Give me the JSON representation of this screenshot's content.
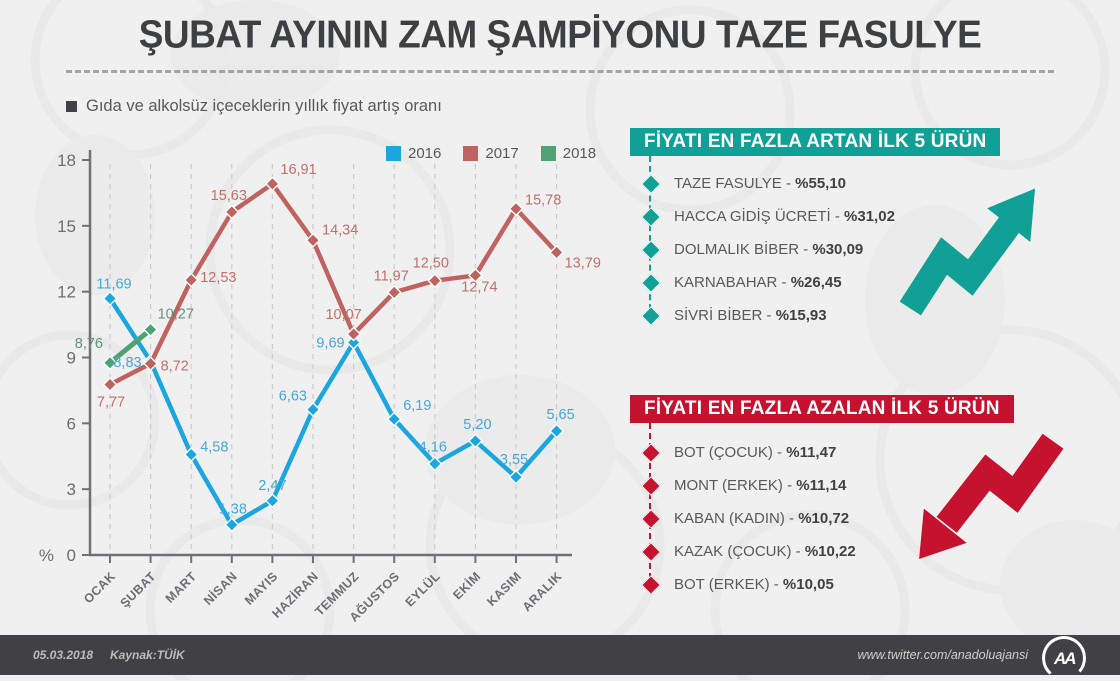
{
  "page": {
    "title": "ŞUBAT AYININ ZAM ŞAMPİYONU TAZE FASULYE",
    "subtitle": "Gıda ve alkolsüz içeceklerin yıllık fiyat artış oranı",
    "background_color": "#f0f0f0"
  },
  "chart_data": {
    "type": "line",
    "title": "Gıda ve alkolsüz içeceklerin yıllık fiyat artış oranı",
    "xlabel": "",
    "ylabel": "%",
    "ylim": [
      0,
      18
    ],
    "yticks": [
      0,
      3,
      6,
      9,
      12,
      15,
      18
    ],
    "grid": "vertical-dashed",
    "legend_position": "top",
    "categories": [
      "OCAK",
      "ŞUBAT",
      "MART",
      "NİSAN",
      "MAYIS",
      "HAZİRAN",
      "TEMMUZ",
      "AĞUSTOS",
      "EYLÜL",
      "EKİM",
      "KASIM",
      "ARALIK"
    ],
    "series": [
      {
        "name": "2016",
        "color": "#1ca6e0",
        "label_color": "#45a8d9",
        "values": [
          11.69,
          8.83,
          4.58,
          1.38,
          2.47,
          6.63,
          9.69,
          6.19,
          4.16,
          5.2,
          3.55,
          5.65
        ],
        "label_pos": [
          [
            4,
            -10,
            "m"
          ],
          [
            -9,
            6,
            "e"
          ],
          [
            9,
            -3,
            "s"
          ],
          [
            1,
            -11,
            "m"
          ],
          [
            0,
            -11,
            "m"
          ],
          [
            -6,
            -9,
            "e"
          ],
          [
            -9,
            5,
            "e"
          ],
          [
            9,
            -9,
            "s"
          ],
          [
            -2,
            -12,
            "m"
          ],
          [
            2,
            -12,
            "m"
          ],
          [
            -2,
            -13,
            "m"
          ],
          [
            4,
            -12,
            "m"
          ]
        ]
      },
      {
        "name": "2017",
        "color": "#bf6360",
        "label_color": "#c1706c",
        "values": [
          7.77,
          8.72,
          12.53,
          15.63,
          16.91,
          14.34,
          10.07,
          11.97,
          12.5,
          12.74,
          15.78,
          13.79
        ],
        "label_pos": [
          [
            1,
            22,
            "m"
          ],
          [
            10,
            7,
            "s"
          ],
          [
            9,
            2,
            "s"
          ],
          [
            -3,
            -12,
            "m"
          ],
          [
            8,
            -10,
            "s"
          ],
          [
            9,
            -6,
            "s"
          ],
          [
            -10,
            -15,
            "m"
          ],
          [
            -3,
            -12,
            "m"
          ],
          [
            -4,
            -13,
            "m"
          ],
          [
            4,
            16,
            "m"
          ],
          [
            9,
            -4,
            "s"
          ],
          [
            8,
            15,
            "s"
          ]
        ]
      },
      {
        "name": "2018",
        "color": "#4fa273",
        "label_color": "#649478",
        "values": [
          8.76,
          10.27,
          null,
          null,
          null,
          null,
          null,
          null,
          null,
          null,
          null,
          null
        ],
        "label_pos": [
          [
            -7,
            -15,
            "e"
          ],
          [
            7,
            -11,
            "s"
          ]
        ]
      }
    ]
  },
  "panels": {
    "increase": {
      "title": "FİYATI EN FAZLA ARTAN İLK 5 ÜRÜN",
      "accent_color": "#10a096",
      "items": [
        {
          "label": "TAZE FASULYE - ",
          "value": "%55,10"
        },
        {
          "label": "HACCA GİDİŞ ÜCRETİ - ",
          "value": "%31,02"
        },
        {
          "label": "DOLMALIK BİBER - ",
          "value": "%30,09"
        },
        {
          "label": "KARNABAHAR - ",
          "value": "%26,45"
        },
        {
          "label": "SİVRİ BİBER - ",
          "value": "%15,93"
        }
      ]
    },
    "decrease": {
      "title": "FİYATI EN FAZLA AZALAN İLK 5 ÜRÜN",
      "accent_color": "#c4122f",
      "items": [
        {
          "label": "BOT (ÇOCUK) - ",
          "value": "%11,47"
        },
        {
          "label": "MONT (ERKEK) - ",
          "value": "%11,14"
        },
        {
          "label": "KABAN (KADIN) - ",
          "value": "%10,72"
        },
        {
          "label": "KAZAK (ÇOCUK) - ",
          "value": "%10,22"
        },
        {
          "label": "BOT (ERKEK) - ",
          "value": "%10,05"
        }
      ]
    }
  },
  "footer": {
    "date": "05.03.2018",
    "source": "Kaynak:TÜİK",
    "url": "www.twitter.com/anadoluajansi",
    "logo_text": "AA",
    "background_color": "#414042"
  }
}
